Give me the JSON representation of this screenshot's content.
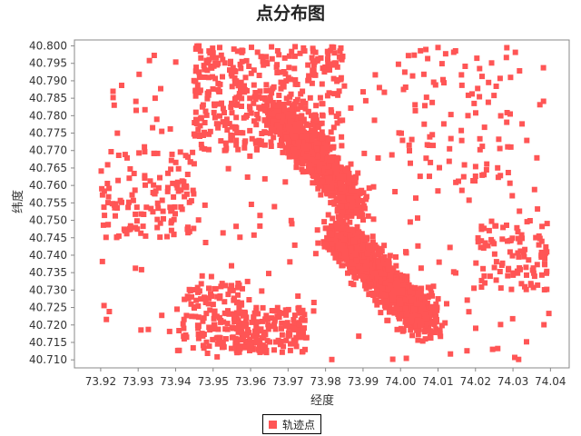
{
  "chart_data": {
    "type": "scatter",
    "title": "点分布图",
    "xlabel": "经度",
    "ylabel": "纬度",
    "xlim": [
      73.913,
      74.045
    ],
    "ylim": [
      40.7077,
      40.8017
    ],
    "xticks": [
      "73.92",
      "73.93",
      "73.94",
      "73.95",
      "73.96",
      "73.97",
      "73.98",
      "73.99",
      "74.00",
      "74.01",
      "74.02",
      "74.03",
      "74.04"
    ],
    "yticks": [
      "40.800",
      "40.795",
      "40.790",
      "40.785",
      "40.780",
      "40.775",
      "40.770",
      "40.765",
      "40.760",
      "40.755",
      "40.750",
      "40.745",
      "40.740",
      "40.735",
      "40.730",
      "40.725",
      "40.720",
      "40.715",
      "40.710"
    ],
    "grid": false,
    "legend_position": "bottom",
    "series": [
      {
        "name": "轨迹点",
        "color": "#ff5555",
        "clusters": [
          {
            "x": [
              73.975,
              74.015
            ],
            "y": [
              40.712,
              40.755
            ],
            "count": 1400,
            "dist": "gauss"
          },
          {
            "x": [
              73.96,
              73.995
            ],
            "y": [
              40.745,
              40.79
            ],
            "count": 900,
            "dist": "gauss"
          },
          {
            "x": [
              73.945,
              73.985
            ],
            "y": [
              40.77,
              40.8
            ],
            "count": 400,
            "dist": "uniform"
          },
          {
            "x": [
              73.955,
              73.975
            ],
            "y": [
              40.712,
              40.725
            ],
            "count": 180,
            "dist": "uniform"
          },
          {
            "x": [
              73.942,
              73.958
            ],
            "y": [
              40.713,
              40.732
            ],
            "count": 120,
            "dist": "uniform"
          },
          {
            "x": [
              73.92,
              73.945
            ],
            "y": [
              40.745,
              40.77
            ],
            "count": 120,
            "dist": "uniform"
          },
          {
            "x": [
              74.02,
              74.04
            ],
            "y": [
              40.73,
              40.75
            ],
            "count": 90,
            "dist": "uniform"
          },
          {
            "x": [
              74.0,
              74.03
            ],
            "y": [
              40.76,
              40.8
            ],
            "count": 70,
            "dist": "uniform"
          },
          {
            "x": [
              73.92,
              74.04
            ],
            "y": [
              40.71,
              40.8
            ],
            "count": 260,
            "dist": "uniform"
          }
        ]
      }
    ]
  }
}
